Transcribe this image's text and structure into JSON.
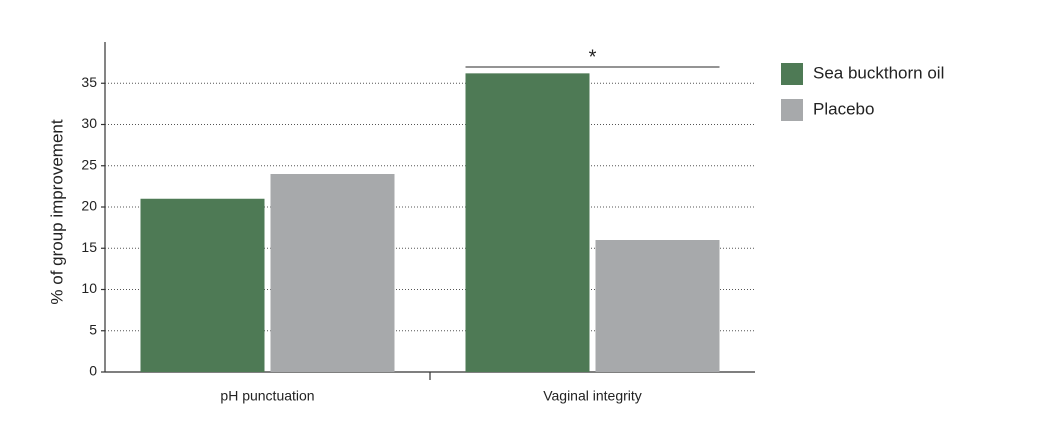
{
  "chart_data": {
    "type": "bar",
    "y_label": "% of group improvement",
    "categories": [
      "pH punctuation",
      "Vaginal integrity"
    ],
    "series": [
      {
        "name": "Sea buckthorn oil",
        "color": "#4e7a55",
        "values": [
          21,
          36.2
        ]
      },
      {
        "name": "Placebo",
        "color": "#a7a9ab",
        "values": [
          24,
          16
        ]
      }
    ],
    "ylim": [
      0,
      40
    ],
    "yticks": [
      0,
      5,
      10,
      15,
      20,
      25,
      30,
      35
    ],
    "grid": true,
    "annotation": "*"
  }
}
